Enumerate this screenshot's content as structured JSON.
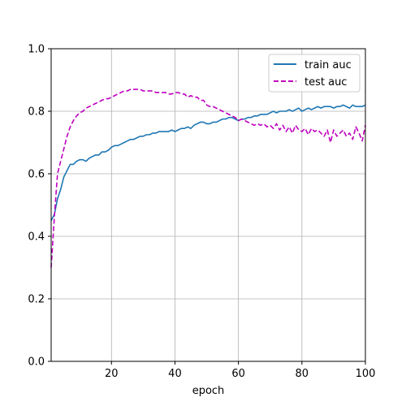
{
  "chart_data": {
    "type": "line",
    "title": "",
    "xlabel": "epoch",
    "ylabel": "",
    "xlim": [
      1,
      100
    ],
    "ylim": [
      0.0,
      1.0
    ],
    "x_ticks": [
      20,
      40,
      60,
      80,
      100
    ],
    "y_ticks": [
      0.0,
      0.2,
      0.4,
      0.6,
      0.8,
      1.0
    ],
    "x_tick_labels": [
      "20",
      "40",
      "60",
      "80",
      "100"
    ],
    "y_tick_labels": [
      "0.0",
      "0.2",
      "0.4",
      "0.6",
      "0.8",
      "1.0"
    ],
    "grid": true,
    "legend_position": "top-right",
    "series": [
      {
        "name": "train auc",
        "color": "#1f77b4",
        "style": "solid",
        "x": [
          1,
          2,
          3,
          4,
          5,
          6,
          7,
          8,
          9,
          10,
          11,
          12,
          13,
          14,
          15,
          16,
          17,
          18,
          19,
          20,
          21,
          22,
          23,
          24,
          25,
          26,
          27,
          28,
          29,
          30,
          31,
          32,
          33,
          34,
          35,
          36,
          37,
          38,
          39,
          40,
          41,
          42,
          43,
          44,
          45,
          46,
          47,
          48,
          49,
          50,
          51,
          52,
          53,
          54,
          55,
          56,
          57,
          58,
          59,
          60,
          61,
          62,
          63,
          64,
          65,
          66,
          67,
          68,
          69,
          70,
          71,
          72,
          73,
          74,
          75,
          76,
          77,
          78,
          79,
          80,
          81,
          82,
          83,
          84,
          85,
          86,
          87,
          88,
          89,
          90,
          91,
          92,
          93,
          94,
          95,
          96,
          97,
          98,
          99,
          100
        ],
        "values": [
          0.45,
          0.47,
          0.52,
          0.55,
          0.59,
          0.61,
          0.63,
          0.63,
          0.64,
          0.645,
          0.645,
          0.64,
          0.65,
          0.655,
          0.66,
          0.66,
          0.67,
          0.67,
          0.675,
          0.685,
          0.69,
          0.69,
          0.695,
          0.7,
          0.705,
          0.71,
          0.71,
          0.715,
          0.72,
          0.72,
          0.725,
          0.725,
          0.73,
          0.73,
          0.735,
          0.735,
          0.735,
          0.735,
          0.74,
          0.735,
          0.74,
          0.745,
          0.745,
          0.75,
          0.745,
          0.755,
          0.76,
          0.765,
          0.765,
          0.76,
          0.76,
          0.765,
          0.765,
          0.77,
          0.775,
          0.775,
          0.78,
          0.78,
          0.775,
          0.77,
          0.775,
          0.775,
          0.78,
          0.78,
          0.785,
          0.785,
          0.79,
          0.79,
          0.79,
          0.795,
          0.8,
          0.795,
          0.8,
          0.8,
          0.8,
          0.805,
          0.8,
          0.805,
          0.81,
          0.8,
          0.805,
          0.81,
          0.805,
          0.81,
          0.815,
          0.81,
          0.815,
          0.815,
          0.815,
          0.81,
          0.815,
          0.815,
          0.82,
          0.815,
          0.81,
          0.82,
          0.815,
          0.815,
          0.815,
          0.82
        ]
      },
      {
        "name": "test auc",
        "color": "#bf00bf",
        "style": "dashed",
        "x": [
          1,
          2,
          3,
          4,
          5,
          6,
          7,
          8,
          9,
          10,
          11,
          12,
          13,
          14,
          15,
          16,
          17,
          18,
          19,
          20,
          21,
          22,
          23,
          24,
          25,
          26,
          27,
          28,
          29,
          30,
          31,
          32,
          33,
          34,
          35,
          36,
          37,
          38,
          39,
          40,
          41,
          42,
          43,
          44,
          45,
          46,
          47,
          48,
          49,
          50,
          51,
          52,
          53,
          54,
          55,
          56,
          57,
          58,
          59,
          60,
          61,
          62,
          63,
          64,
          65,
          66,
          67,
          68,
          69,
          70,
          71,
          72,
          73,
          74,
          75,
          76,
          77,
          78,
          79,
          80,
          81,
          82,
          83,
          84,
          85,
          86,
          87,
          88,
          89,
          90,
          91,
          92,
          93,
          94,
          95,
          96,
          97,
          98,
          99,
          100
        ],
        "values": [
          0.3,
          0.46,
          0.6,
          0.64,
          0.68,
          0.72,
          0.75,
          0.77,
          0.785,
          0.795,
          0.8,
          0.81,
          0.815,
          0.82,
          0.825,
          0.83,
          0.835,
          0.84,
          0.84,
          0.845,
          0.85,
          0.855,
          0.86,
          0.865,
          0.865,
          0.87,
          0.87,
          0.87,
          0.87,
          0.865,
          0.865,
          0.865,
          0.865,
          0.86,
          0.86,
          0.86,
          0.86,
          0.855,
          0.855,
          0.86,
          0.86,
          0.855,
          0.855,
          0.845,
          0.85,
          0.845,
          0.845,
          0.835,
          0.835,
          0.82,
          0.815,
          0.815,
          0.81,
          0.805,
          0.8,
          0.795,
          0.79,
          0.785,
          0.78,
          0.77,
          0.775,
          0.77,
          0.765,
          0.76,
          0.755,
          0.76,
          0.755,
          0.76,
          0.75,
          0.755,
          0.745,
          0.76,
          0.74,
          0.755,
          0.735,
          0.75,
          0.73,
          0.755,
          0.74,
          0.735,
          0.745,
          0.725,
          0.745,
          0.735,
          0.74,
          0.73,
          0.72,
          0.74,
          0.7,
          0.74,
          0.72,
          0.73,
          0.74,
          0.72,
          0.73,
          0.71,
          0.75,
          0.73,
          0.705,
          0.755
        ]
      }
    ]
  }
}
